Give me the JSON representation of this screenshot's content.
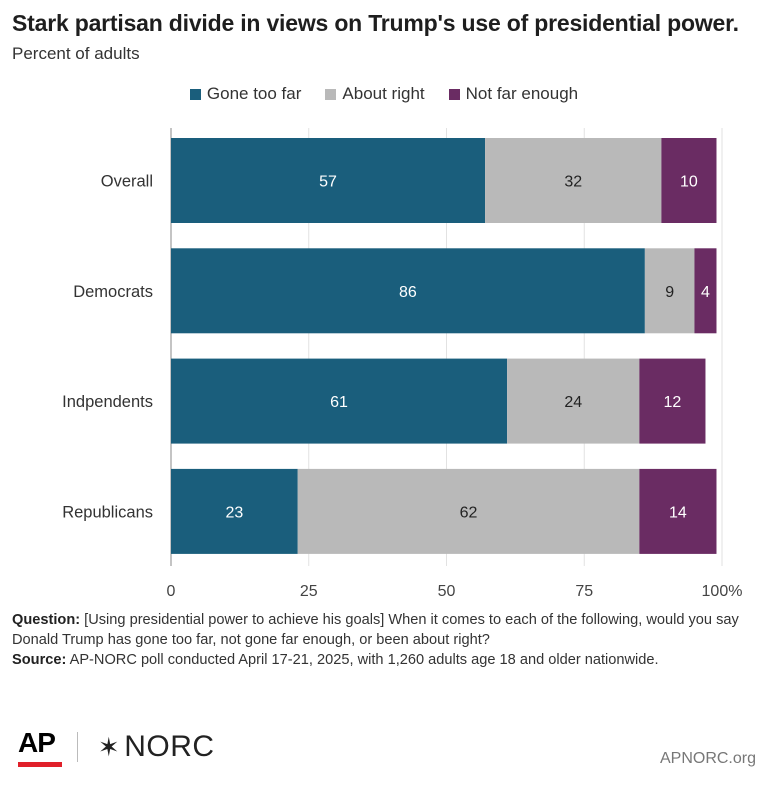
{
  "title": "Stark partisan divide in views on Trump's use of presidential power.",
  "subtitle": "Percent of adults",
  "colors": {
    "gone_too_far": "#1a5e7c",
    "about_right": "#b9b9b9",
    "not_far_enough": "#6a2c63"
  },
  "chart_data": {
    "type": "bar",
    "orientation": "horizontal",
    "stacked": true,
    "categories": [
      "Overall",
      "Democrats",
      "Indpendents",
      "Republicans"
    ],
    "series": [
      {
        "name": "Gone too far",
        "values": [
          57,
          86,
          61,
          23
        ]
      },
      {
        "name": "About right",
        "values": [
          32,
          9,
          24,
          62
        ]
      },
      {
        "name": "Not far enough",
        "values": [
          10,
          4,
          12,
          14
        ]
      }
    ],
    "xlim": [
      0,
      100
    ],
    "xticks": [
      "0",
      "25",
      "50",
      "75",
      "100%"
    ],
    "legend_position": "top-center",
    "grid": true
  },
  "notes": {
    "question_label": "Question:",
    "question_text": " [Using presidential power to achieve his goals] When it comes to each of the following, would you say Donald Trump has gone too far, not gone far enough, or been about right?",
    "source_label": "Source:",
    "source_text": " AP-NORC poll conducted April 17-21, 2025, with 1,260 adults age 18 and older nationwide."
  },
  "footer": {
    "ap": "AP",
    "norc_star": "✶",
    "norc": "NORC",
    "site": "APNORC.org"
  }
}
